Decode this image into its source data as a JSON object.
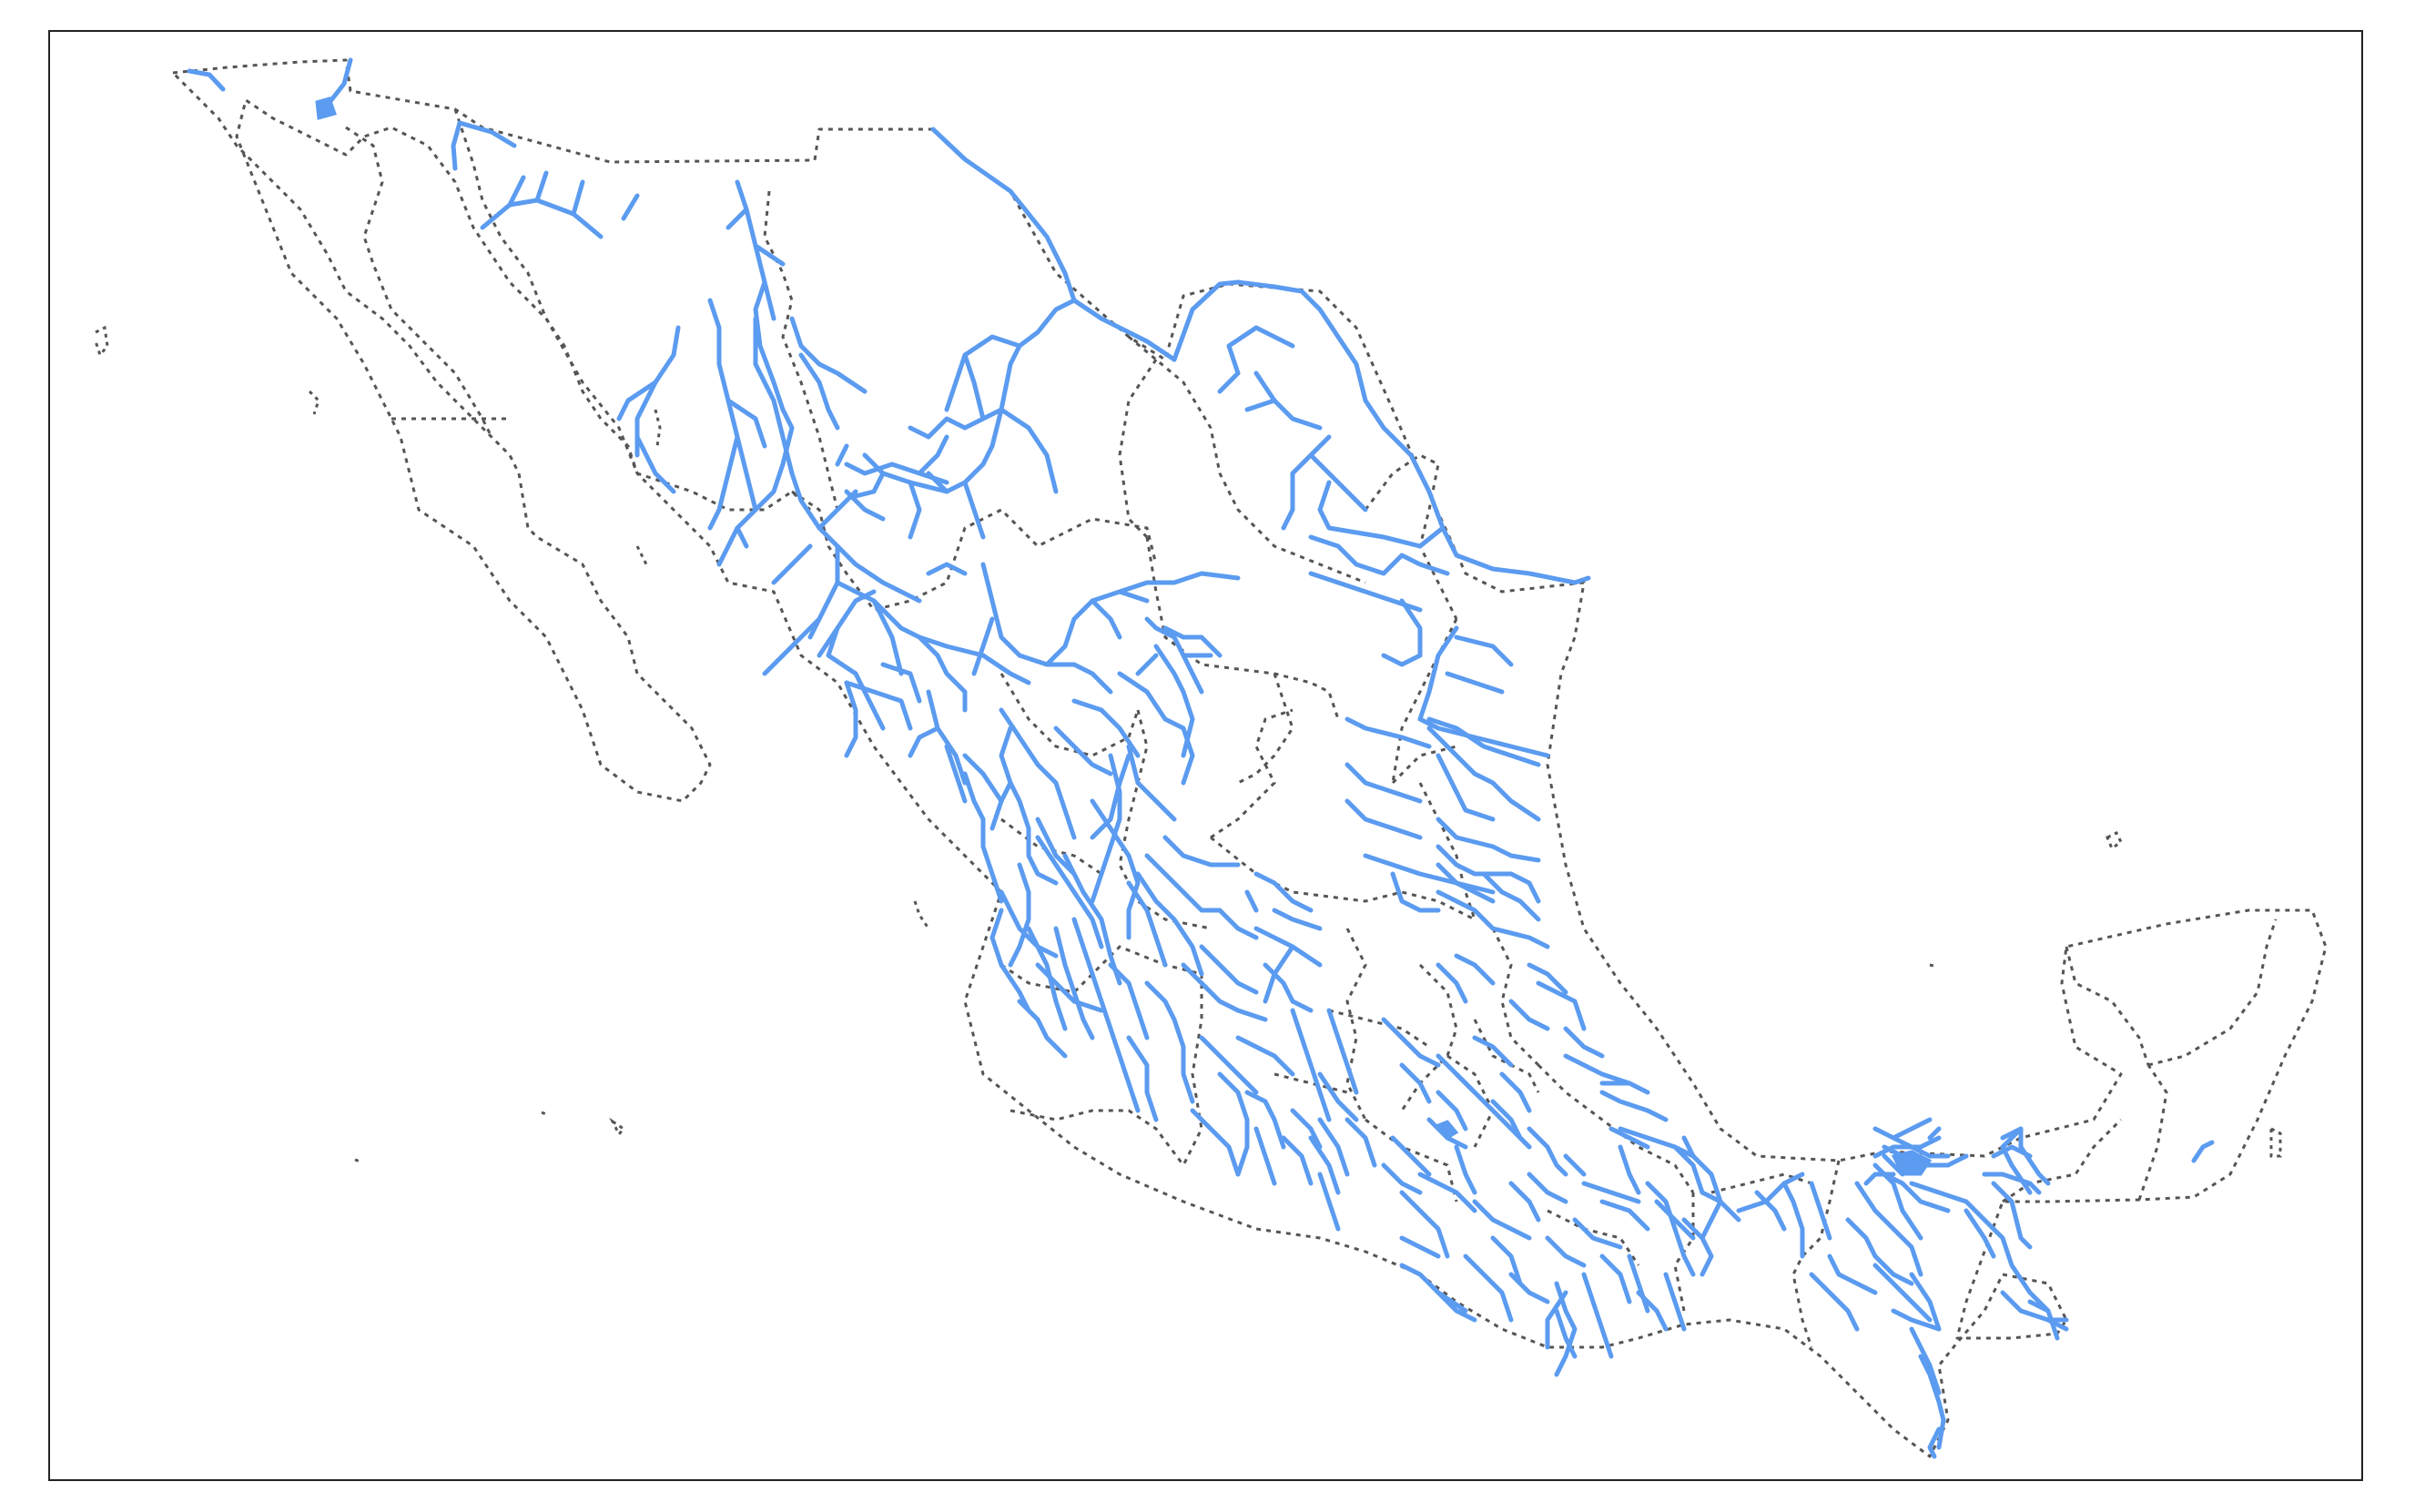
{
  "map": {
    "region": "Mexico",
    "layers": [
      "national-border",
      "state-borders",
      "rivers"
    ],
    "colors": {
      "river": "#5b9bf0",
      "border": "#555555",
      "frame": "#222222",
      "background": "#ffffff"
    },
    "border_style": "dotted",
    "river_style": "solid"
  }
}
